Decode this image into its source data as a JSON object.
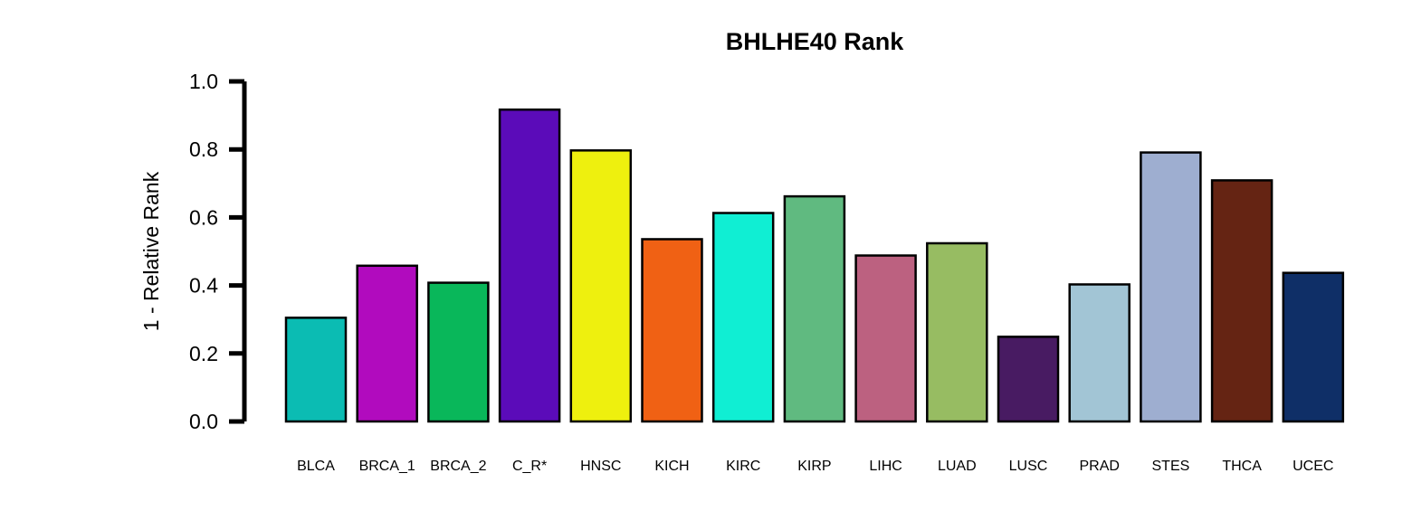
{
  "chart_data": {
    "type": "bar",
    "title": "BHLHE40 Rank",
    "xlabel": "",
    "ylabel": "1 - Relative Rank",
    "ylim": [
      0,
      1.0
    ],
    "yticks": [
      "0.0",
      "0.2",
      "0.4",
      "0.6",
      "0.8",
      "1.0"
    ],
    "ytick_values": [
      0,
      0.2,
      0.4,
      0.6,
      0.8,
      1.0
    ],
    "grid": false,
    "legend": "none",
    "categories": [
      "BLCA",
      "BRCA_1",
      "BRCA_2",
      "C_R*",
      "HNSC",
      "KICH",
      "KIRC",
      "KIRP",
      "LIHC",
      "LUAD",
      "LUSC",
      "PRAD",
      "STES",
      "THCA",
      "UCEC"
    ],
    "values": [
      0.305,
      0.458,
      0.408,
      0.917,
      0.797,
      0.536,
      0.613,
      0.662,
      0.488,
      0.524,
      0.249,
      0.403,
      0.791,
      0.709,
      0.437
    ],
    "colors": [
      "#0bbcb3",
      "#b10bbe",
      "#09b75a",
      "#5b0bb9",
      "#eef00e",
      "#f06114",
      "#10eed3",
      "#60ba80",
      "#bc6180",
      "#97bc62",
      "#481b62",
      "#a2c5d5",
      "#9eaed0",
      "#652413",
      "#0f2f67"
    ]
  }
}
